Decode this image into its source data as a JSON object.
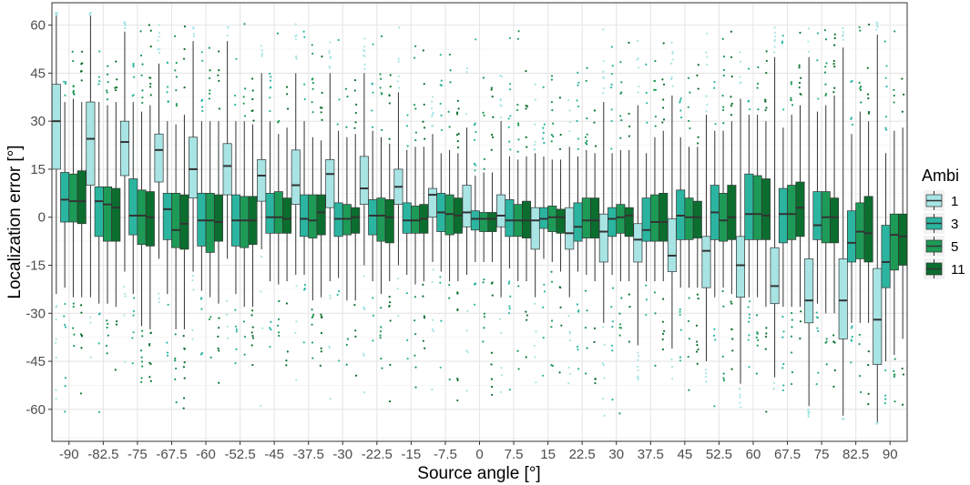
{
  "chart_data": {
    "type": "boxplot",
    "xlabel": "Source angle [°]",
    "ylabel": "Localization error [°]",
    "ylim": [
      -70,
      67
    ],
    "yticks": [
      -60,
      -45,
      -30,
      -15,
      0,
      15,
      30,
      45,
      60
    ],
    "grid": true,
    "legend": {
      "title": "Ambi",
      "placement": "right"
    },
    "categories": [
      "-90",
      "-82.5",
      "-75",
      "-67.5",
      "-60",
      "-52.5",
      "-45",
      "-37.5",
      "-30",
      "-22.5",
      "-15",
      "-7.5",
      "0",
      "7.5",
      "15",
      "22.5",
      "30",
      "37.5",
      "45",
      "52.5",
      "60",
      "67.5",
      "75",
      "82.5",
      "90"
    ],
    "series": [
      {
        "name": "1",
        "color": "#a8e4e4",
        "median": [
          30,
          24.5,
          23.5,
          21,
          15,
          16,
          13,
          10,
          13.5,
          9,
          9.5,
          7,
          1.5,
          0.5,
          -1,
          -5,
          -4.5,
          -7,
          -12,
          -10.5,
          -15,
          -21.5,
          -26,
          -26,
          -32
        ],
        "q1": [
          15,
          10,
          13,
          11,
          6,
          7,
          5,
          4,
          3,
          4,
          4,
          0,
          -3,
          -3,
          -10,
          -10,
          -14,
          -14,
          -17,
          -22,
          -25,
          -27,
          -33,
          -38,
          -46
        ],
        "q3": [
          41.5,
          36,
          30,
          26,
          25,
          23,
          18,
          21,
          18,
          19,
          15,
          9,
          10,
          7,
          3,
          3,
          1,
          -2,
          -0.5,
          -6,
          -6,
          -9.5,
          -13,
          -13,
          -16
        ],
        "whisker_low": [
          -24,
          -25,
          -17,
          -13,
          -17,
          -13,
          -10,
          -18,
          -20,
          -15,
          -15,
          -14,
          -18,
          -25,
          -25,
          -25,
          -33,
          -40,
          -41,
          -45,
          -52,
          -50,
          -59,
          -62,
          -64
        ],
        "whisker_high": [
          63,
          63,
          58,
          48,
          55,
          55,
          45,
          45,
          45,
          45,
          39,
          26,
          28,
          30,
          20,
          22,
          36,
          35,
          38,
          32,
          37,
          50,
          50,
          53,
          57
        ]
      },
      {
        "name": "3",
        "color": "#2bb5a0",
        "median": [
          5.5,
          5,
          0.5,
          2.5,
          -1,
          -1,
          0,
          -0.5,
          -0.5,
          0.5,
          -1,
          1.5,
          -0.5,
          -1,
          -0.5,
          -3,
          -0.5,
          -4,
          0.5,
          1.5,
          1,
          1,
          -2.5,
          -8,
          -14
        ],
        "q1": [
          -1.5,
          -6,
          -5.5,
          -7,
          -9,
          -9,
          -5,
          -6,
          -6,
          -5.5,
          -5,
          -4.5,
          -4,
          -6,
          -3.5,
          -7.5,
          -6,
          -7.5,
          -7,
          -7,
          -7,
          -8,
          -7,
          -14,
          -22
        ],
        "q3": [
          14,
          9.5,
          12,
          7.5,
          7.5,
          7,
          7.5,
          7,
          4.5,
          5.5,
          4.5,
          7.5,
          2,
          5.5,
          3,
          4.5,
          3,
          6,
          8.5,
          10,
          13.5,
          9,
          8,
          2,
          -2.5
        ],
        "whisker_low": [
          -22,
          -27,
          -24,
          -24,
          -23,
          -24,
          -20,
          -18,
          -19,
          -20,
          -18,
          -17,
          -14,
          -16,
          -13,
          -17,
          -18,
          -20,
          -22,
          -25,
          -25,
          -28,
          -27,
          -33,
          -45
        ],
        "whisker_high": [
          36,
          36,
          36,
          30,
          30,
          30,
          30,
          30,
          27,
          27,
          21,
          20,
          13,
          19,
          19,
          19,
          20,
          20,
          25,
          27,
          32,
          28,
          33,
          26,
          20
        ]
      },
      {
        "name": "5",
        "color": "#1e9a57",
        "median": [
          5,
          4,
          0.5,
          -4,
          -1,
          -1,
          0,
          -1,
          -0.5,
          0.5,
          -1,
          1,
          -0.5,
          -1,
          0,
          -1,
          0,
          -1.5,
          0,
          -1,
          1,
          1,
          0,
          -4.5,
          -5.5
        ],
        "q1": [
          -1.5,
          -7.5,
          -8.5,
          -9.5,
          -11,
          -9.5,
          -5,
          -6.5,
          -5.5,
          -7.5,
          -5,
          -5.5,
          -4.5,
          -6,
          -4.5,
          -6.5,
          -5,
          -7.5,
          -7,
          -7.5,
          -7,
          -7,
          -8,
          -13,
          -16.5
        ],
        "q3": [
          13.5,
          9.5,
          8.5,
          7.5,
          7.5,
          6.5,
          8,
          7,
          4,
          6,
          3.5,
          7,
          1.5,
          4,
          3.5,
          6,
          4,
          7,
          6,
          7.5,
          13,
          10,
          8,
          4.5,
          1
        ],
        "whisker_low": [
          -25,
          -27,
          -34,
          -35,
          -25,
          -28,
          -21,
          -26,
          -26,
          -24,
          -21,
          -20,
          -14,
          -20,
          -14,
          -18,
          -20,
          -20,
          -22,
          -22,
          -25,
          -28,
          -30,
          -33,
          -43
        ],
        "whisker_high": [
          37,
          35,
          33,
          29,
          30,
          30,
          26,
          25,
          25,
          25,
          22,
          21,
          14,
          18,
          18,
          21,
          21,
          25,
          22,
          27,
          32,
          32,
          35,
          33,
          27
        ]
      },
      {
        "name": "11",
        "color": "#0b6e2e",
        "median": [
          5,
          3,
          0,
          -2,
          -1.5,
          -1,
          -0.5,
          1.5,
          0,
          0,
          -0.5,
          0.5,
          -0.5,
          -1,
          0,
          -1,
          0.5,
          -1.5,
          0,
          0,
          0.5,
          3,
          0,
          -5,
          -6
        ],
        "q1": [
          -2,
          -7.5,
          -9,
          -10,
          -7.5,
          -8.5,
          -5,
          -5.5,
          -5,
          -8,
          -5,
          -5,
          -4.5,
          -6.5,
          -5,
          -6.5,
          -6,
          -7.5,
          -6.5,
          -7,
          -7,
          -6,
          -8,
          -14,
          -15
        ],
        "q3": [
          14.5,
          9,
          8,
          7,
          7,
          6.5,
          6,
          7,
          3,
          5.5,
          4,
          6,
          1.5,
          5,
          2.5,
          6,
          3,
          7.5,
          5,
          10,
          12,
          11,
          6,
          6.5,
          1
        ],
        "whisker_low": [
          -25,
          -28,
          -35,
          -35,
          -27,
          -28,
          -20,
          -25,
          -26,
          -20,
          -20,
          -20,
          -14,
          -20,
          -17,
          -20,
          -20,
          -20,
          -22,
          -24,
          -28,
          -28,
          -30,
          -33,
          -38
        ],
        "whisker_high": [
          36,
          36,
          35,
          32,
          30,
          29,
          28,
          24,
          26,
          23,
          22,
          20,
          14,
          19,
          18,
          20,
          21,
          27,
          22,
          30,
          30,
          35,
          38,
          30,
          28
        ]
      }
    ]
  }
}
